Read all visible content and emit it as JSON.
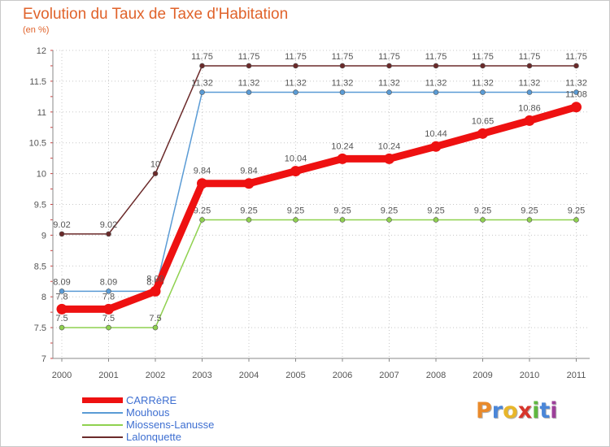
{
  "header": {
    "title": "Evolution du Taux de Taxe d'Habitation",
    "subtitle": "(en %)"
  },
  "brand": {
    "letters": [
      "P",
      "r",
      "o",
      "x",
      "i",
      "t",
      "i"
    ],
    "colors": [
      "#e98a2b",
      "#4a86d8",
      "#e8b62a",
      "#d7362c",
      "#5fb840",
      "#4a86d8",
      "#9d3f9a"
    ]
  },
  "chart_data": {
    "type": "line",
    "title": "Evolution du Taux de Taxe d'Habitation",
    "subtitle": "(en %)",
    "x": [
      "2000",
      "2001",
      "2002",
      "2003",
      "2004",
      "2005",
      "2006",
      "2007",
      "2008",
      "2009",
      "2010",
      "2011"
    ],
    "ylim": [
      7,
      12
    ],
    "yticks": [
      "7",
      "7.5",
      "8",
      "8.5",
      "9",
      "9.5",
      "10",
      "10.5",
      "11",
      "11.5",
      "12"
    ],
    "grid": true,
    "legend_position": "bottom-left",
    "series": [
      {
        "name": "Lalonquette",
        "color": "#6b2a2a",
        "style": "thin",
        "values": [
          9.02,
          9.02,
          10,
          11.75,
          11.75,
          11.75,
          11.75,
          11.75,
          11.75,
          11.75,
          11.75,
          11.75
        ],
        "labels": [
          "9.02",
          "9.02",
          "10",
          "11.75",
          "11.75",
          "11.75",
          "11.75",
          "11.75",
          "11.75",
          "11.75",
          "11.75",
          "11.75"
        ]
      },
      {
        "name": "Mouhous",
        "color": "#5a9bd5",
        "style": "thin",
        "values": [
          8.09,
          8.09,
          8.09,
          11.32,
          11.32,
          11.32,
          11.32,
          11.32,
          11.32,
          11.32,
          11.32,
          11.32
        ],
        "labels": [
          "8.09",
          "8.09",
          "8.09",
          "11.32",
          "11.32",
          "11.32",
          "11.32",
          "11.32",
          "11.32",
          "11.32",
          "11.32",
          "11.32"
        ]
      },
      {
        "name": "Miossens-Lanusse",
        "color": "#8fd14f",
        "style": "thin",
        "values": [
          7.5,
          7.5,
          7.5,
          9.25,
          9.25,
          9.25,
          9.25,
          9.25,
          9.25,
          9.25,
          9.25,
          9.25
        ],
        "labels": [
          "7.5",
          "7.5",
          "7.5",
          "9.25",
          "9.25",
          "9.25",
          "9.25",
          "9.25",
          "9.25",
          "9.25",
          "9.25",
          "9.25"
        ]
      },
      {
        "name": "CARRèRE",
        "color": "#ee1111",
        "style": "thick",
        "values": [
          7.8,
          7.8,
          8.09,
          9.84,
          9.84,
          10.04,
          10.24,
          10.24,
          10.44,
          10.65,
          10.86,
          11.08
        ],
        "labels": [
          "7.8",
          "7.8",
          "8.09",
          "9.84",
          "9.84",
          "10.04",
          "10.24",
          "10.24",
          "10.44",
          "10.65",
          "10.86",
          "11.08"
        ]
      }
    ],
    "legend": [
      "CARRèRE",
      "Mouhous",
      "Miossens-Lanusse",
      "Lalonquette"
    ]
  }
}
